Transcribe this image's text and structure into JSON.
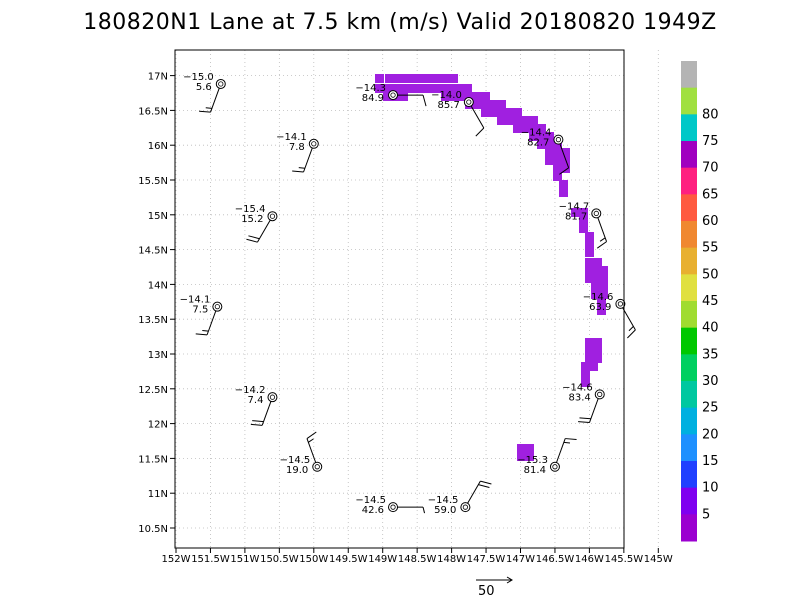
{
  "title": "180820N1 Lane at 7.5 km (m/s) Valid 20180820  1949Z",
  "vector_scale_label": "50",
  "chart_data": {
    "type": "scatter",
    "title": "180820N1 Lane at 7.5 km (m/s) Valid 20180820  1949Z",
    "xlim": [
      -152,
      -144.7
    ],
    "ylim": [
      10.3,
      17.2
    ],
    "x_ticks": [
      {
        "v": -152,
        "label": "152W"
      },
      {
        "v": -151.5,
        "label": "151.5W"
      },
      {
        "v": -151,
        "label": "151W"
      },
      {
        "v": -150.5,
        "label": "150.5W"
      },
      {
        "v": -150,
        "label": "150W"
      },
      {
        "v": -149.5,
        "label": "149.5W"
      },
      {
        "v": -149,
        "label": "149W"
      },
      {
        "v": -148.5,
        "label": "148.5W"
      },
      {
        "v": -148,
        "label": "148W"
      },
      {
        "v": -147.5,
        "label": "147.5W"
      },
      {
        "v": -147,
        "label": "147W"
      },
      {
        "v": -146.5,
        "label": "146.5W"
      },
      {
        "v": -146,
        "label": "146W"
      },
      {
        "v": -145.5,
        "label": "145.5W"
      },
      {
        "v": -145,
        "label": "145W"
      }
    ],
    "y_ticks": [
      {
        "v": 10.5,
        "label": "10.5N"
      },
      {
        "v": 11,
        "label": "11N"
      },
      {
        "v": 11.5,
        "label": "11.5N"
      },
      {
        "v": 12,
        "label": "12N"
      },
      {
        "v": 12.5,
        "label": "12.5N"
      },
      {
        "v": 13,
        "label": "13N"
      },
      {
        "v": 13.5,
        "label": "13.5N"
      },
      {
        "v": 14,
        "label": "14N"
      },
      {
        "v": 14.5,
        "label": "14.5N"
      },
      {
        "v": 15,
        "label": "15N"
      },
      {
        "v": 15.5,
        "label": "15.5N"
      },
      {
        "v": 16,
        "label": "16N"
      },
      {
        "v": 16.5,
        "label": "16.5N"
      },
      {
        "v": 17,
        "label": "17N"
      }
    ],
    "grid": true,
    "dropsondes": [
      {
        "lon": -151.35,
        "lat": 16.88,
        "temp": "−15.0",
        "wind": "5.6",
        "dir": 200,
        "spd": 15
      },
      {
        "lon": -148.85,
        "lat": 16.72,
        "temp": "−14.3",
        "wind": "84.9",
        "dir": 90,
        "spd": 10
      },
      {
        "lon": -147.75,
        "lat": 16.62,
        "temp": "−14.0",
        "wind": "85.7",
        "dir": 150,
        "spd": 10
      },
      {
        "lon": -146.45,
        "lat": 16.08,
        "temp": "−14.4",
        "wind": "82.7",
        "dir": 160,
        "spd": 10
      },
      {
        "lon": -150.0,
        "lat": 16.02,
        "temp": "−14.1",
        "wind": "7.8",
        "dir": 200,
        "spd": 15
      },
      {
        "lon": -150.6,
        "lat": 14.98,
        "temp": "−15.4",
        "wind": "15.2",
        "dir": 210,
        "spd": 20
      },
      {
        "lon": -145.9,
        "lat": 15.02,
        "temp": "−14.7",
        "wind": "81.7",
        "dir": 160,
        "spd": 15
      },
      {
        "lon": -151.4,
        "lat": 13.68,
        "temp": "−14.1",
        "wind": "7.5",
        "dir": 200,
        "spd": 15
      },
      {
        "lon": -145.55,
        "lat": 13.72,
        "temp": "−14.6",
        "wind": "63.9",
        "dir": 150,
        "spd": 15
      },
      {
        "lon": -150.6,
        "lat": 12.38,
        "temp": "−14.2",
        "wind": "7.4",
        "dir": 200,
        "spd": 20
      },
      {
        "lon": -145.85,
        "lat": 12.42,
        "temp": "−14.6",
        "wind": "83.4",
        "dir": 200,
        "spd": 20
      },
      {
        "lon": -149.95,
        "lat": 11.38,
        "temp": "−14.5",
        "wind": "19.0",
        "dir": 340,
        "spd": 15
      },
      {
        "lon": -146.5,
        "lat": 11.38,
        "temp": "−15.3",
        "wind": "81.4",
        "dir": 20,
        "spd": 15
      },
      {
        "lon": -148.85,
        "lat": 10.8,
        "temp": "−14.5",
        "wind": "42.6",
        "dir": 90,
        "spd": 5
      },
      {
        "lon": -147.8,
        "lat": 10.8,
        "temp": "−14.5",
        "wind": "59.0",
        "dir": 30,
        "spd": 20
      }
    ],
    "colorbar": {
      "labels": [
        "5",
        "10",
        "15",
        "20",
        "25",
        "30",
        "35",
        "40",
        "45",
        "50",
        "55",
        "60",
        "65",
        "70",
        "75",
        "80"
      ],
      "colors": [
        "#9b00d0",
        "#7f00f0",
        "#2040ff",
        "#1e90ff",
        "#00b0e0",
        "#00c8a0",
        "#00d060",
        "#00c800",
        "#a0dc30",
        "#e0e040",
        "#e8b030",
        "#f08830",
        "#ff5a40",
        "#ff2080",
        "#a000c0",
        "#00c8c8",
        "#a0e040",
        "#b4b4b4"
      ],
      "radar_color": "#a020e0"
    }
  }
}
